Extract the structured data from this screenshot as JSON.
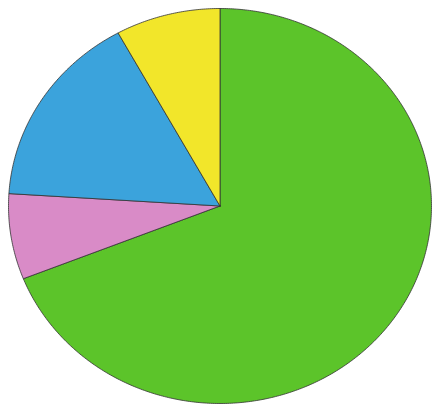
{
  "chart_data": {
    "type": "pie",
    "values": [
      69,
      7,
      16,
      8
    ],
    "colors": [
      "#5cc42a",
      "#d98bc7",
      "#3ba3dc",
      "#f2e62a"
    ]
  }
}
